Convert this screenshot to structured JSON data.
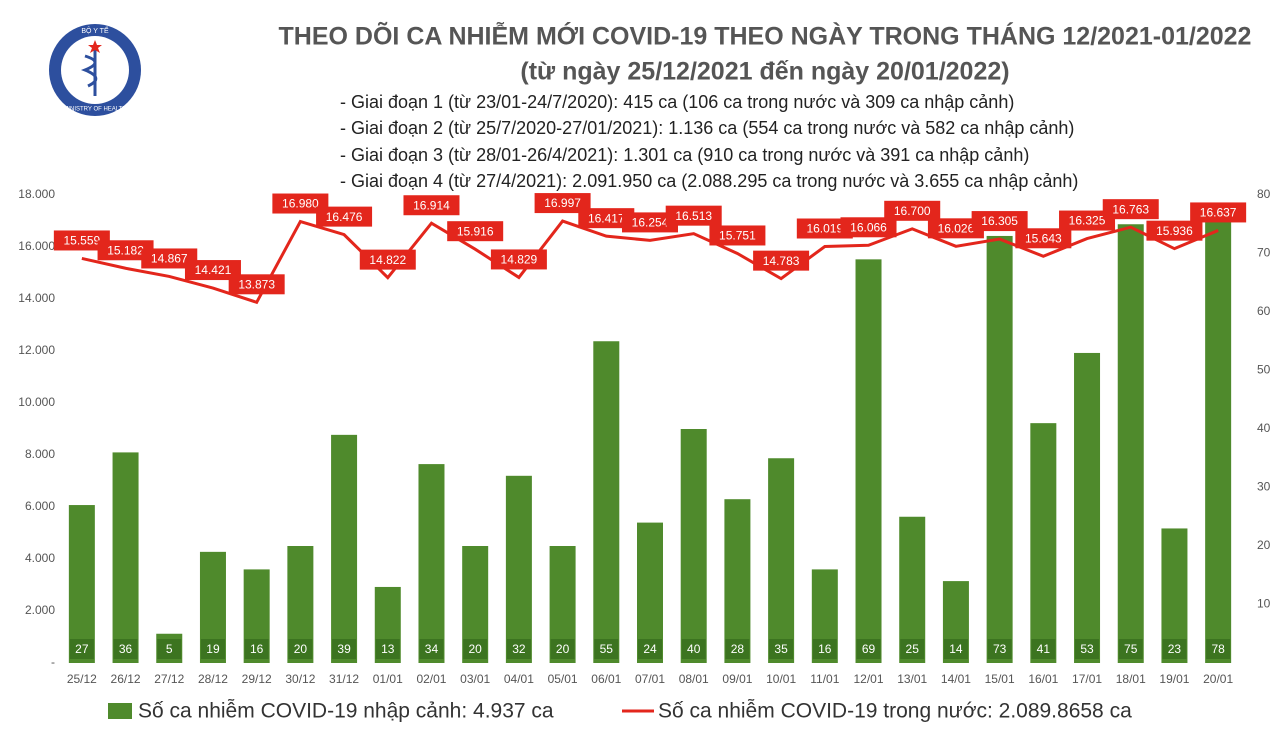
{
  "chart_data": {
    "type": "bar_line",
    "title": "THEO DÕI CA NHIỄM MỚI COVID-19 THEO NGÀY TRONG THÁNG 12/2021-01/2022",
    "subtitle": "(từ ngày 25/12/2021 đến ngày 20/01/2022)",
    "annotations": [
      "- Giai đoạn 1 (từ 23/01-24/7/2020): 415 ca (106 ca trong nước và 309 ca nhập cảnh)",
      "- Giai đoạn 2 (từ 25/7/2020-27/01/2021): 1.136 ca (554 ca trong nước và 582 ca nhập cảnh)",
      "- Giai đoạn 3 (từ 28/01-26/4/2021): 1.301 ca (910 ca trong nước và 391 ca nhập cảnh)",
      "- Giai đoạn 4 (từ 27/4/2021): 2.091.950 ca (2.088.295 ca trong nước và 3.655 ca nhập cảnh)"
    ],
    "logo": {
      "top": "BỘ Y TẾ",
      "bottom": "MINISTRY OF HEALTH"
    },
    "categories": [
      "25/12",
      "26/12",
      "27/12",
      "28/12",
      "29/12",
      "30/12",
      "31/12",
      "01/01",
      "02/01",
      "03/01",
      "04/01",
      "05/01",
      "06/01",
      "07/01",
      "08/01",
      "09/01",
      "10/01",
      "11/01",
      "12/01",
      "13/01",
      "14/01",
      "15/01",
      "16/01",
      "17/01",
      "18/01",
      "19/01",
      "20/01"
    ],
    "series": [
      {
        "name": "Số ca nhiễm COVID-19 nhập cảnh: 4.937 ca",
        "type": "bar",
        "axis": "y2",
        "color": "#4f8a2c",
        "values": [
          27,
          36,
          5,
          19,
          16,
          20,
          39,
          13,
          34,
          20,
          32,
          20,
          55,
          24,
          40,
          28,
          35,
          16,
          69,
          25,
          14,
          73,
          41,
          53,
          75,
          23,
          78
        ]
      },
      {
        "name": "Số ca nhiễm COVID-19 trong nước: 2.089.8658 ca",
        "type": "line",
        "color": "#e3261c",
        "values": [
          15559,
          15182,
          14867,
          14421,
          13873,
          16980,
          16476,
          14822,
          16914,
          15916,
          14829,
          16997,
          16417,
          16254,
          16513,
          15751,
          14783,
          16019,
          16066,
          16700,
          16026,
          16305,
          15643,
          16325,
          16763,
          15936,
          16637
        ],
        "value_labels": [
          "15.559",
          "15.182",
          "14.867",
          "14.421",
          "13.873",
          "16.980",
          "16.476",
          "14.822",
          "16.914",
          "15.916",
          "14.829",
          "16.997",
          "16.417",
          "16.254",
          "16.513",
          "15.751",
          "14.783",
          "16.019",
          "16.066",
          "16.700",
          "16.026",
          "16.305",
          "15.643",
          "16.325",
          "16.763",
          "15.936",
          "16.637"
        ]
      }
    ],
    "ylim": [
      0,
      18000
    ],
    "yticks": [
      {
        "value": 0,
        "label": "-"
      },
      {
        "value": 2000,
        "label": "2.000"
      },
      {
        "value": 4000,
        "label": "4.000"
      },
      {
        "value": 6000,
        "label": "6.000"
      },
      {
        "value": 8000,
        "label": "8.000"
      },
      {
        "value": 10000,
        "label": "10.000"
      },
      {
        "value": 12000,
        "label": "12.000"
      },
      {
        "value": 14000,
        "label": "14.000"
      },
      {
        "value": 16000,
        "label": "16.000"
      },
      {
        "value": 18000,
        "label": "18.000"
      }
    ],
    "y2lim": [
      0,
      80
    ],
    "y2ticks": [
      10,
      20,
      30,
      40,
      50,
      60,
      70,
      80
    ]
  }
}
